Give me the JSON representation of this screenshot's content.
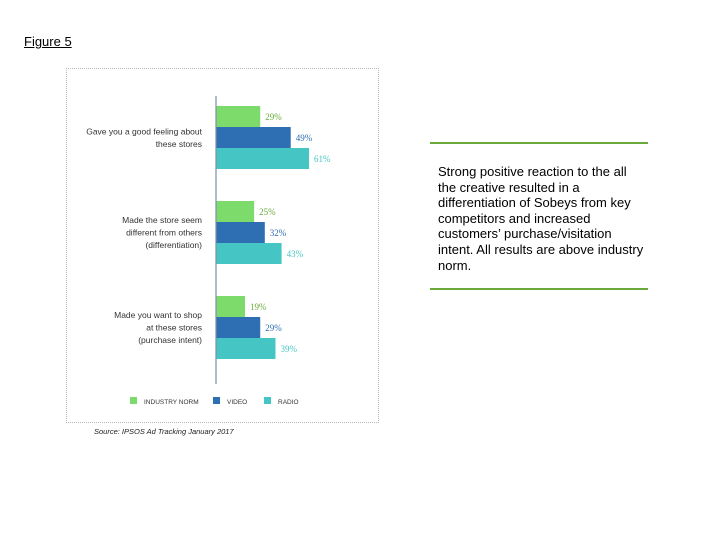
{
  "figure_label": "Figure 5",
  "source_note": "Source:  IPSOS  Ad  Tracking  January  2017",
  "callout_text": "Strong positive reaction to the all the creative resulted in a differentiation of Sobeys from key competitors and increased customers’ purchase/visitation intent.  All results are above industry norm.",
  "colors": {
    "industry_norm": "#7ddb6b",
    "video": "#2e6eb3",
    "radio": "#45c6c4",
    "callout_rule": "#6aaa3a"
  },
  "chart_data": {
    "type": "bar",
    "orientation": "horizontal",
    "title": "",
    "xlabel": "",
    "ylabel": "",
    "xlim": [
      0,
      100
    ],
    "grid": false,
    "legend_position": "bottom",
    "categories": [
      [
        "Gave you a good feeling about",
        "these stores"
      ],
      [
        "Made the store seem",
        "different from others",
        "(differentiation)"
      ],
      [
        "Made you want to shop",
        "at these stores",
        "(purchase intent)"
      ]
    ],
    "series": [
      {
        "name": "INDUSTRY NORM",
        "values": [
          29,
          25,
          19
        ],
        "labels": [
          "29%",
          "25%",
          "19%"
        ]
      },
      {
        "name": "VIDEO",
        "values": [
          49,
          32,
          29
        ],
        "labels": [
          "49%",
          "32%",
          "29%"
        ]
      },
      {
        "name": "RADIO",
        "values": [
          61,
          43,
          39
        ],
        "labels": [
          "61%",
          "43%",
          "39%"
        ]
      }
    ]
  }
}
